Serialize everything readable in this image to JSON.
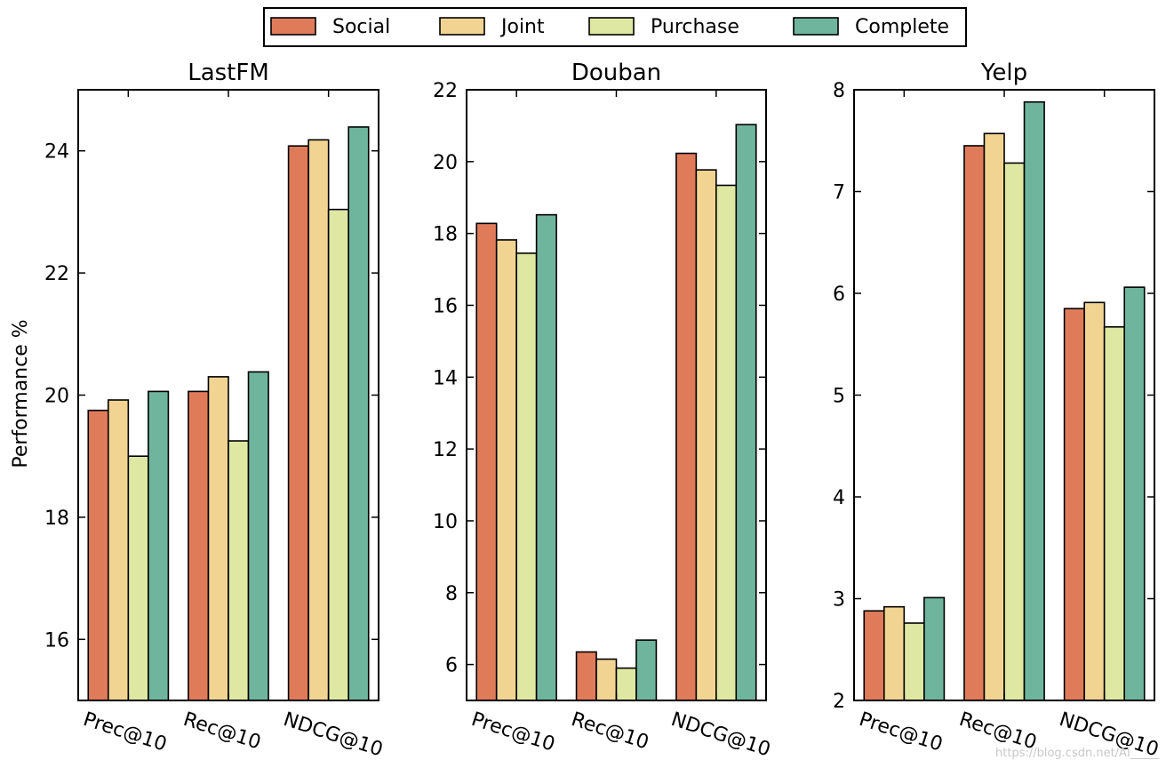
{
  "legend": [
    {
      "label": "Social",
      "color": "#e07b5a"
    },
    {
      "label": "Joint",
      "color": "#f2d492"
    },
    {
      "label": "Purchase",
      "color": "#dfe8a2"
    },
    {
      "label": "Complete",
      "color": "#6fb59d"
    }
  ],
  "ylabel": "Performance %",
  "watermark": "https://blog.csdn.net/AI_____",
  "chart_data": [
    {
      "type": "bar",
      "title": "LastFM",
      "categories": [
        "Prec@10",
        "Rec@10",
        "NDCG@10"
      ],
      "ylim": [
        15,
        25
      ],
      "yticks": [
        16,
        18,
        20,
        22,
        24
      ],
      "series": [
        {
          "name": "Social",
          "values": [
            19.75,
            20.06,
            24.08
          ]
        },
        {
          "name": "Joint",
          "values": [
            19.92,
            20.3,
            24.18
          ]
        },
        {
          "name": "Purchase",
          "values": [
            19.0,
            19.25,
            23.04
          ]
        },
        {
          "name": "Complete",
          "values": [
            20.06,
            20.38,
            24.39
          ]
        }
      ]
    },
    {
      "type": "bar",
      "title": "Douban",
      "categories": [
        "Prec@10",
        "Rec@10",
        "NDCG@10"
      ],
      "ylim": [
        5,
        22
      ],
      "yticks": [
        6,
        8,
        10,
        12,
        14,
        16,
        18,
        20,
        22
      ],
      "series": [
        {
          "name": "Social",
          "values": [
            18.28,
            6.35,
            20.23
          ]
        },
        {
          "name": "Joint",
          "values": [
            17.82,
            6.15,
            19.77
          ]
        },
        {
          "name": "Purchase",
          "values": [
            17.45,
            5.9,
            19.34
          ]
        },
        {
          "name": "Complete",
          "values": [
            18.52,
            6.68,
            21.03
          ]
        }
      ]
    },
    {
      "type": "bar",
      "title": "Yelp",
      "categories": [
        "Prec@10",
        "Rec@10",
        "NDCG@10"
      ],
      "ylim": [
        2,
        8
      ],
      "yticks": [
        2,
        3,
        4,
        5,
        6,
        7,
        8
      ],
      "series": [
        {
          "name": "Social",
          "values": [
            2.88,
            7.45,
            5.85
          ]
        },
        {
          "name": "Joint",
          "values": [
            2.92,
            7.57,
            5.91
          ]
        },
        {
          "name": "Purchase",
          "values": [
            2.76,
            7.28,
            5.67
          ]
        },
        {
          "name": "Complete",
          "values": [
            3.01,
            7.88,
            6.06
          ]
        }
      ]
    }
  ]
}
